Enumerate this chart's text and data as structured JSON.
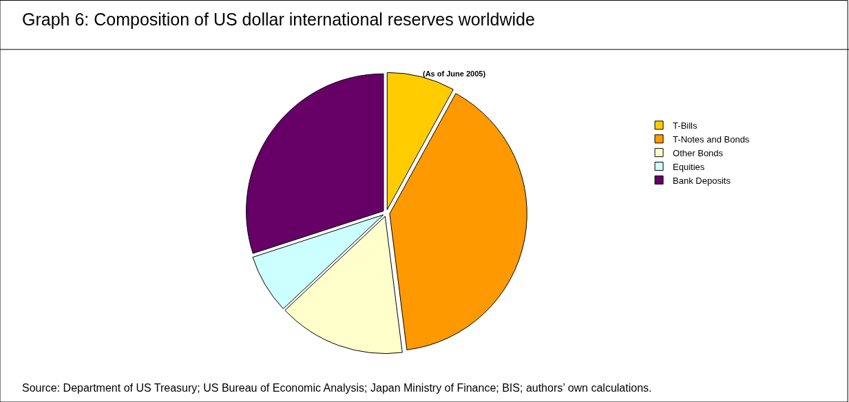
{
  "chart_data": {
    "type": "pie",
    "title": "Graph 6: Composition of US dollar international reserves worldwide",
    "subtitle": "(As of June 2005)",
    "categories": [
      "T-Bills",
      "T-Notes and Bonds",
      "Other Bonds",
      "Equities",
      "Bank Deposits"
    ],
    "values": [
      8,
      40,
      15,
      7,
      30
    ],
    "colors": [
      "#ffcc00",
      "#ff9900",
      "#ffffcc",
      "#ccffff",
      "#660066"
    ],
    "legend": "right",
    "annotations": [
      "Source: Department of US Treasury; US Bureau of Economic Analysis; Japan Ministry of Finance; BIS; authors’ own calculations."
    ]
  }
}
